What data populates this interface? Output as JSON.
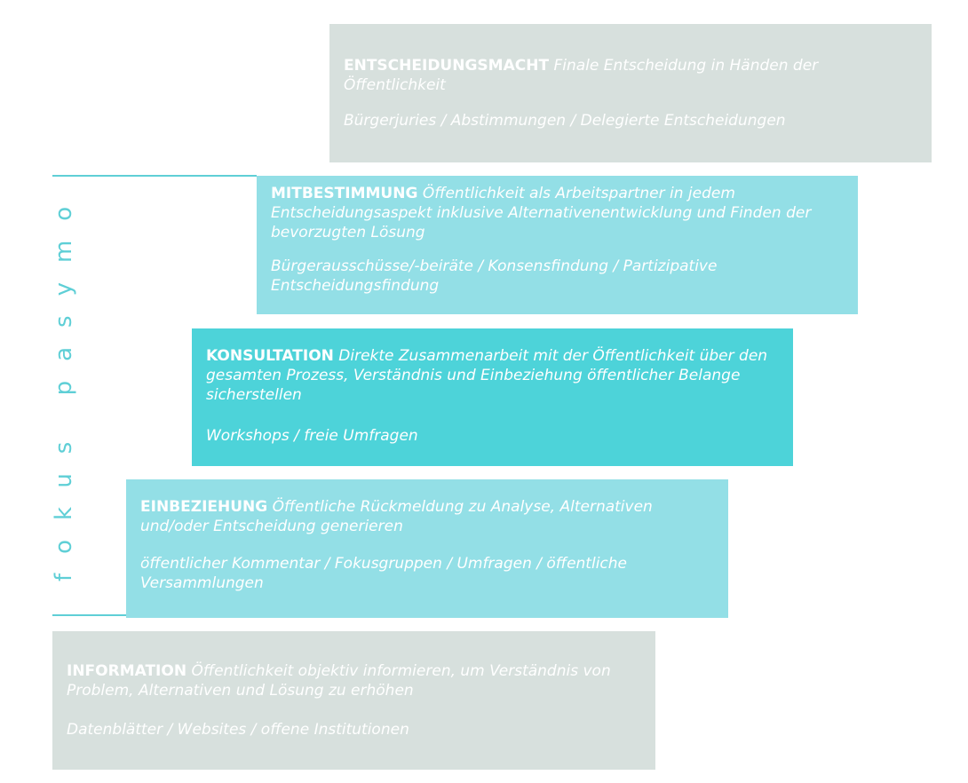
{
  "focus_label": "fokus pasymo",
  "steps": [
    {
      "name": "INFORMATION",
      "description": "Öffentlichkeit objektiv informieren, um Verständnis von Problem, Alternativen und Lösung zu erhöhen",
      "methods": "Datenblätter / Websites / offene Institutionen",
      "color": "#d7e0dd"
    },
    {
      "name": "EINBEZIEHUNG",
      "description": "Öffentliche Rückmeldung zu Analyse, Alternativen und/oder Entscheidung generieren",
      "methods": "öffentlicher Kommentar / Fokusgruppen / Umfragen / öffentliche Versammlungen",
      "color": "#93dfe6"
    },
    {
      "name": "KONSULTATION",
      "description": "Direkte Zusammenarbeit mit der Öffentlichkeit über den gesamten Prozess, Verständnis und Einbeziehung öffentlicher Belange sicherstellen",
      "methods": "Workshops / freie Umfragen",
      "color": "#4dd3d9"
    },
    {
      "name": "MITBESTIMMUNG",
      "description": "Öffentlichkeit als Arbeitspartner in jedem Entscheidungsaspekt inklusive Alternativenentwicklung und Finden der bevorzugten Lösung",
      "methods": "Bürgerausschüsse/-beiräte / Konsensfindung / Partizipative Entscheidungsfindung",
      "color": "#93dfe6"
    },
    {
      "name": "ENTSCHEIDUNGSMACHT",
      "description": "Finale Entscheidung in Händen der Öffentlichkeit",
      "methods": "Bürgerjuries / Abstimmungen / Delegierte Entscheidungen",
      "color": "#d7e0dd"
    }
  ]
}
